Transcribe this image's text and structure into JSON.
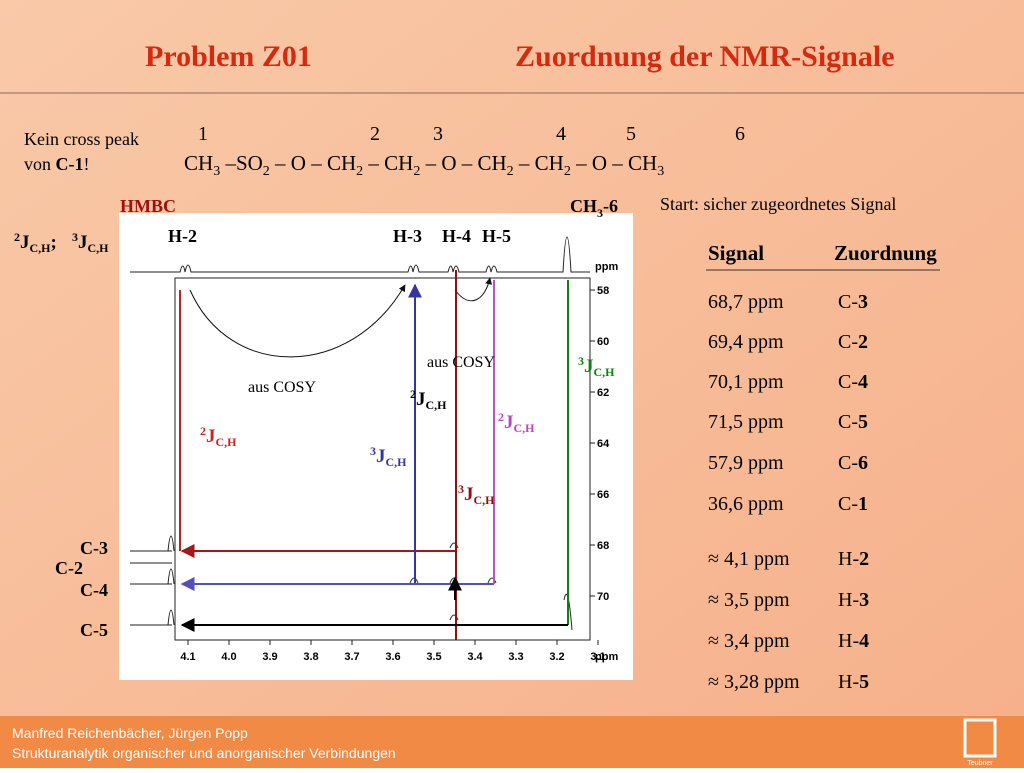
{
  "title": {
    "left": "Problem Z01",
    "right": "Zuordnung der NMR-Signale"
  },
  "note": {
    "line1": "Kein cross peak",
    "line2": "von ",
    "bold": "C-1",
    "end": "!"
  },
  "numbering": [
    "1",
    "2",
    "3",
    "4",
    "5",
    "6"
  ],
  "formula": [
    [
      "CH",
      "3"
    ],
    [
      " –SO",
      "2"
    ],
    [
      " – O – CH",
      "2"
    ],
    [
      " – CH",
      "2"
    ],
    [
      " – O – CH",
      "2"
    ],
    [
      " – CH",
      "2"
    ],
    [
      " – O – CH",
      "3"
    ]
  ],
  "start_note": "Start: sicher zugeordnetes Signal",
  "table": {
    "header": [
      "Signal",
      "Zuordnung"
    ],
    "rows": [
      [
        "68,7 ppm",
        "C-",
        "3"
      ],
      [
        "69,4 ppm",
        "C-",
        "2"
      ],
      [
        "70,1 ppm",
        "C-",
        "4"
      ],
      [
        "71,5 ppm",
        "C-",
        "5"
      ],
      [
        "57,9 ppm",
        "C-",
        "6"
      ],
      [
        "36,6 ppm",
        "C-",
        "1"
      ]
    ],
    "rows_h": [
      [
        "≈ 4,1 ppm",
        "H-",
        "2"
      ],
      [
        "≈ 3,5 ppm",
        "H-",
        "3"
      ],
      [
        "≈  3,4 ppm",
        "H-",
        "4"
      ],
      [
        "≈ 3,28 ppm",
        "H-",
        "5"
      ]
    ]
  },
  "spectrum": {
    "title": "HMBC",
    "ch3": [
      "CH",
      "3",
      "-6"
    ],
    "h_labels": [
      "H-2",
      "H-3",
      "H-4",
      "H-5"
    ],
    "c_labels": [
      "C-3",
      "C-2",
      "C-4",
      "C-5"
    ],
    "legend": [
      {
        "sup": "2",
        "main": "J",
        "sub": "C,H",
        "after": "; "
      },
      {
        "sup": "3",
        "main": "J",
        "sub": "C,H",
        "after": ""
      }
    ],
    "j_labels": [
      {
        "sup": "2",
        "main": "J",
        "sub": "C,H"
      },
      {
        "sup": "3",
        "main": "J",
        "sub": "C,H"
      },
      {
        "sup": "2",
        "main": "J",
        "sub": "C,H"
      },
      {
        "sup": "2",
        "main": "J",
        "sub": "C,H"
      },
      {
        "sup": "3",
        "main": "J",
        "sub": "C,H"
      },
      {
        "sup": "3",
        "main": "J",
        "sub": "C,H"
      }
    ],
    "cosy": [
      "aus COSY",
      "aus COSY"
    ],
    "xticks": [
      "4.1",
      "4.0",
      "3.9",
      "3.8",
      "3.7",
      "3.6",
      "3.5",
      "3.4",
      "3.3",
      "3.2",
      "3.1"
    ],
    "xunit": "ppm",
    "yticks": [
      "58",
      "60",
      "62",
      "64",
      "66",
      "68",
      "70"
    ],
    "yunit": "ppm"
  },
  "footer": {
    "authors": "Manfred Reichenbächer, Jürgen Popp",
    "book": "Strukturanalytik organischer und anorganischer Verbindungen",
    "logo": "Teubner"
  }
}
